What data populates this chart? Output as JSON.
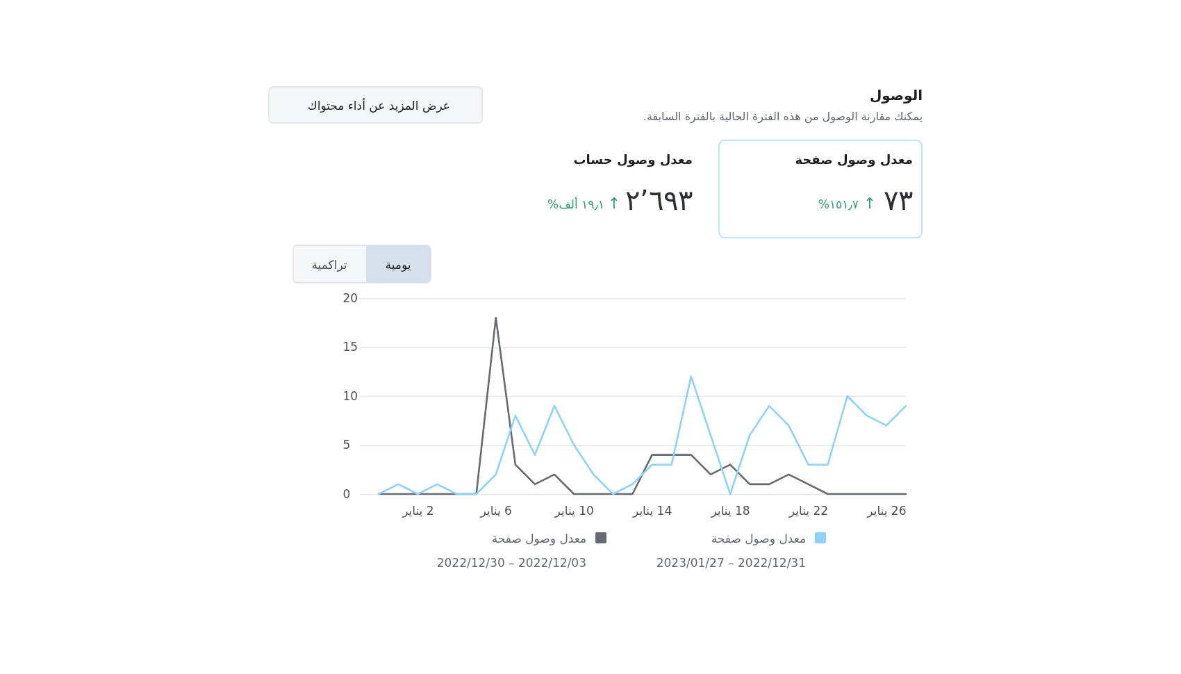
{
  "chart_data": {
    "type": "line",
    "title": "الوصول",
    "subtitle": "يمكنك مقارنة الوصول من هذه الفترة الحالية بالفترة السابقة.",
    "annotations": [
      "عرض المزيد عن أداء محتواك",
      "معدل وصول صفحة",
      "٧٣",
      "↑",
      "١٥١٫٧%",
      "معدل وصول حساب",
      "٢٬٦٩٣",
      "↑",
      "١٩٫١ ألف%",
      "يومية",
      "تراكمية"
    ],
    "x": [
      "2022-12-31",
      "2023-01-01",
      "2023-01-02",
      "2023-01-03",
      "2023-01-04",
      "2023-01-05",
      "2023-01-06",
      "2023-01-07",
      "2023-01-08",
      "2023-01-09",
      "2023-01-10",
      "2023-01-11",
      "2023-01-12",
      "2023-01-13",
      "2023-01-14",
      "2023-01-15",
      "2023-01-16",
      "2023-01-17",
      "2023-01-18",
      "2023-01-19",
      "2023-01-20",
      "2023-01-21",
      "2023-01-22",
      "2023-01-23",
      "2023-01-24",
      "2023-01-25",
      "2023-01-26",
      "2023-01-27"
    ],
    "xlim": [
      "2022-12-30",
      "2023-01-27"
    ],
    "xticks": [
      {
        "value": "2023-01-02",
        "label": "2 يناير"
      },
      {
        "value": "2023-01-06",
        "label": "6 يناير"
      },
      {
        "value": "2023-01-10",
        "label": "10 يناير"
      },
      {
        "value": "2023-01-14",
        "label": "14 يناير"
      },
      {
        "value": "2023-01-18",
        "label": "18 يناير"
      },
      {
        "value": "2023-01-22",
        "label": "22 يناير"
      },
      {
        "value": "2023-01-26",
        "label": "26 يناير"
      }
    ],
    "ylim": [
      0,
      20
    ],
    "yticks": [
      0,
      5,
      10,
      15,
      20
    ],
    "grid": "y",
    "legend": "bottom",
    "line_style": "solid",
    "series": [
      {
        "name": "معدل وصول صفحة\n2022/12/31 – 2023/01/27",
        "color": "#8cd3f7",
        "values": [
          0,
          1,
          0,
          1,
          0,
          0,
          2,
          8,
          4,
          9,
          5,
          2,
          0,
          1,
          3,
          3,
          12,
          6,
          0,
          6,
          9,
          7,
          3,
          3,
          10,
          8,
          7,
          9
        ]
      },
      {
        "name": "معدل وصول صفحة\n2022/12/03 – 2022/12/30",
        "color": "#656b70",
        "values": [
          0,
          0,
          0,
          0,
          0,
          0,
          18,
          3,
          1,
          2,
          0,
          0,
          0,
          0,
          4,
          4,
          4,
          2,
          3,
          1,
          1,
          2,
          1,
          0,
          0,
          0,
          0,
          0
        ]
      }
    ]
  }
}
